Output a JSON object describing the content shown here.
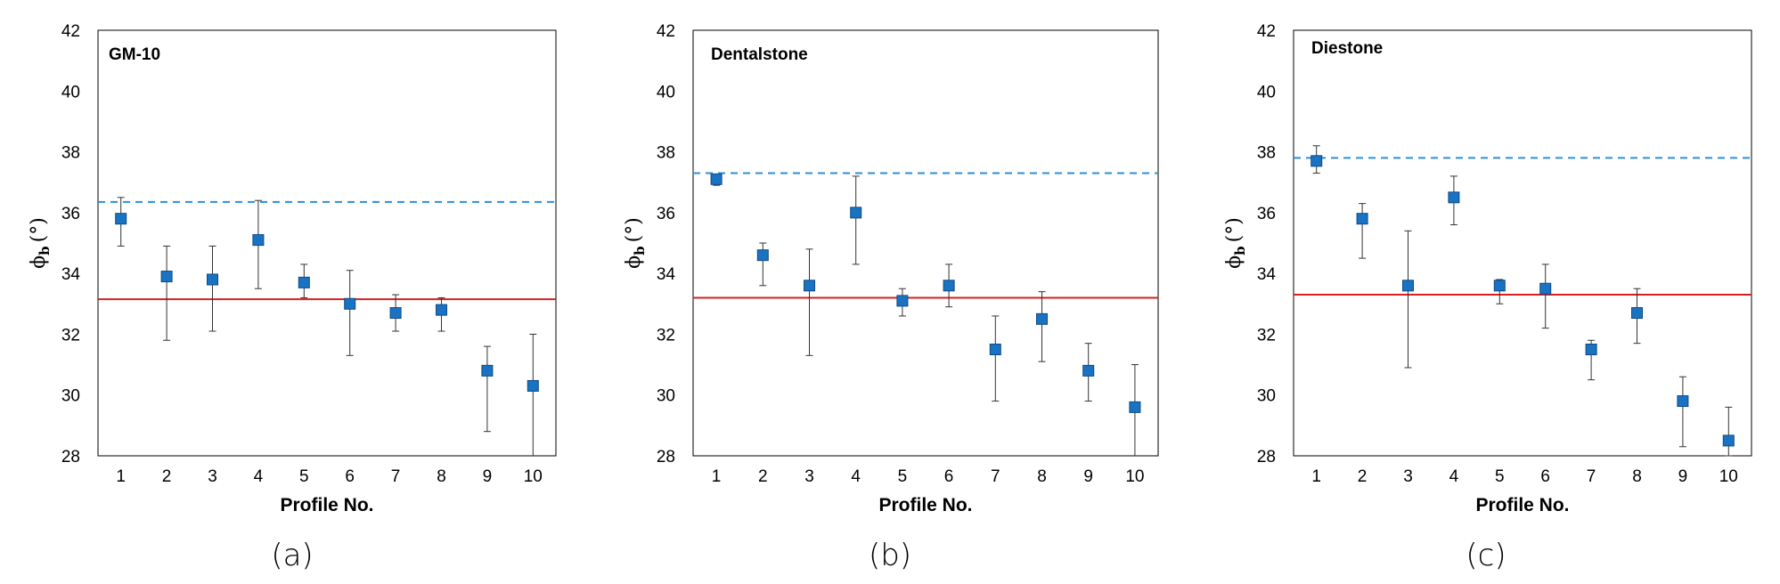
{
  "colors": {
    "marker": "#1a73c2",
    "marker_edge": "#0d4a86",
    "mean_line": "#d42020",
    "upper_line": "#2e8fd6",
    "error_bar": "#333333"
  },
  "chart_data": [
    {
      "type": "scatter",
      "panel_title": "GM-10",
      "caption": "(a)",
      "xlabel": "Profile No.",
      "ylabel_symbol": "ϕ",
      "ylabel_sub": "b",
      "ylabel_unit": "(°)",
      "x": [
        1,
        2,
        3,
        4,
        5,
        6,
        7,
        8,
        9,
        10
      ],
      "y": [
        35.8,
        33.9,
        33.8,
        35.1,
        33.7,
        33.0,
        32.7,
        32.8,
        30.8,
        30.3
      ],
      "err_low": [
        34.9,
        31.8,
        32.1,
        33.5,
        33.2,
        31.3,
        32.1,
        32.1,
        28.8,
        27.9
      ],
      "err_high": [
        36.5,
        34.9,
        34.9,
        36.4,
        34.3,
        34.1,
        33.3,
        33.2,
        31.6,
        32.0
      ],
      "mean_line": 33.15,
      "upper_line": 36.35,
      "xlim": [
        0.5,
        10.5
      ],
      "ylim": [
        28,
        42
      ],
      "yticks": [
        28,
        30,
        32,
        34,
        36,
        38,
        40,
        42
      ]
    },
    {
      "type": "scatter",
      "panel_title": "Dentalstone",
      "caption": "(b)",
      "xlabel": "Profile No.",
      "ylabel_symbol": "ϕ",
      "ylabel_sub": "b",
      "ylabel_unit": "(°)",
      "x": [
        1,
        2,
        3,
        4,
        5,
        6,
        7,
        8,
        9,
        10
      ],
      "y": [
        37.1,
        34.6,
        33.6,
        36.0,
        33.1,
        33.6,
        31.5,
        32.5,
        30.8,
        29.6
      ],
      "err_low": [
        36.9,
        33.6,
        31.3,
        34.3,
        32.6,
        32.9,
        29.8,
        31.1,
        29.8,
        27.9
      ],
      "err_high": [
        37.2,
        35.0,
        34.8,
        37.2,
        33.5,
        34.3,
        32.6,
        33.4,
        31.7,
        31.0
      ],
      "mean_line": 33.2,
      "upper_line": 37.3,
      "xlim": [
        0.5,
        10.5
      ],
      "ylim": [
        28,
        42
      ],
      "yticks": [
        28,
        30,
        32,
        34,
        36,
        38,
        40,
        42
      ]
    },
    {
      "type": "scatter",
      "panel_title": "Diestone",
      "caption": "(c)",
      "xlabel": "Profile No.",
      "ylabel_symbol": "ϕ",
      "ylabel_sub": "b",
      "ylabel_unit": "(°)",
      "x": [
        1,
        2,
        3,
        4,
        5,
        6,
        7,
        8,
        9,
        10
      ],
      "y": [
        37.7,
        35.8,
        33.6,
        36.5,
        33.6,
        33.5,
        31.5,
        32.7,
        29.8,
        28.5
      ],
      "err_low": [
        37.3,
        34.5,
        30.9,
        35.6,
        33.0,
        32.2,
        30.5,
        31.7,
        28.3,
        28.0
      ],
      "err_high": [
        38.2,
        36.3,
        35.4,
        37.2,
        33.8,
        34.3,
        31.8,
        33.5,
        30.6,
        29.6
      ],
      "mean_line": 33.3,
      "upper_line": 37.8,
      "xlim": [
        0.5,
        10.5
      ],
      "ylim": [
        28,
        42
      ],
      "yticks": [
        28,
        30,
        32,
        34,
        36,
        38,
        40,
        42
      ]
    }
  ]
}
